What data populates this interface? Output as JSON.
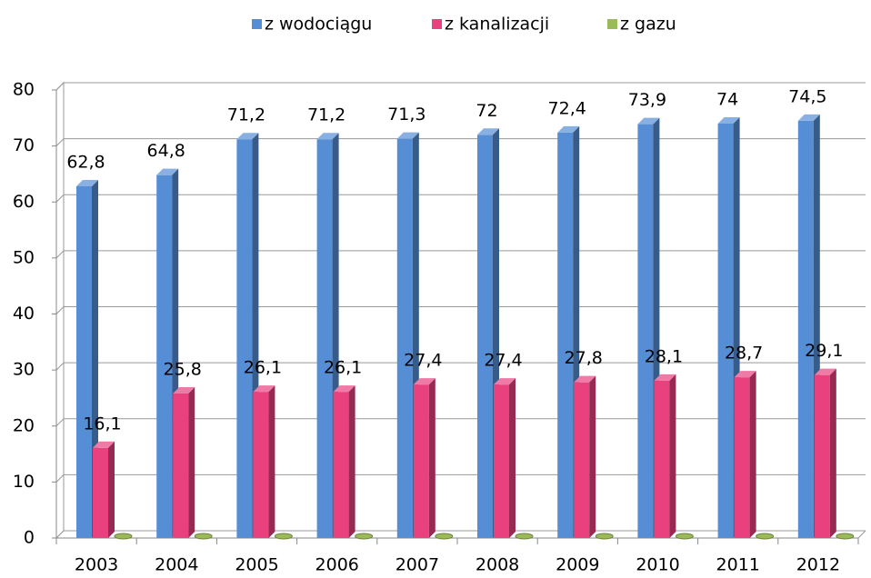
{
  "chart_data": {
    "type": "bar3d",
    "categories": [
      "2003",
      "2004",
      "2005",
      "2006",
      "2007",
      "2008",
      "2009",
      "2010",
      "2011",
      "2012"
    ],
    "series": [
      {
        "name": "z wodociągu",
        "color": "#558ed5",
        "values": [
          62.8,
          64.8,
          71.2,
          71.2,
          71.3,
          72,
          72.4,
          73.9,
          74,
          74.5
        ],
        "value_labels": [
          "62,8",
          "64,8",
          "71,2",
          "71,2",
          "71,3",
          "72",
          "72,4",
          "73,9",
          "74",
          "74,5"
        ]
      },
      {
        "name": "z kanalizacji",
        "color": "#e8417e",
        "values": [
          16.1,
          25.8,
          26.1,
          26.1,
          27.4,
          27.4,
          27.8,
          28.1,
          28.7,
          29.1
        ],
        "value_labels": [
          "16,1",
          "25,8",
          "26,1",
          "26,1",
          "27,4",
          "27,4",
          "27,8",
          "28,1",
          "28,7",
          "29,1"
        ]
      },
      {
        "name": "z gazu",
        "color": "#9bbb59",
        "values": [
          0,
          0,
          0,
          0,
          0,
          0,
          0,
          0,
          0,
          0
        ]
      }
    ],
    "ylim": [
      0,
      80
    ],
    "yticks": [
      0,
      10,
      20,
      30,
      40,
      50,
      60,
      70,
      80
    ],
    "grid": true,
    "legend": "top"
  }
}
